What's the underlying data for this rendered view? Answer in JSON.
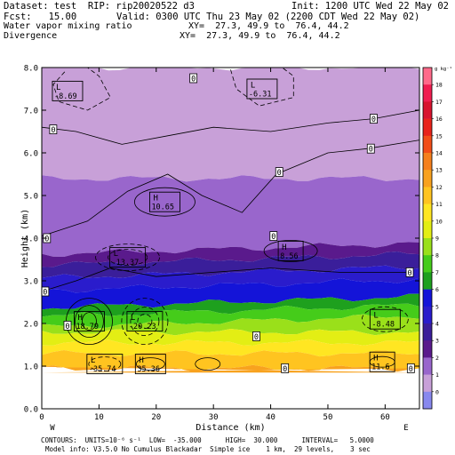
{
  "header": {
    "dataset": "Dataset: test  RIP: rip20020522 d3",
    "init": "Init: 1200 UTC Wed 22 May 02",
    "fcst": "Fcst:   15.00",
    "valid": "Valid: 0300 UTC Thu 23 May 02 (2200 CDT Wed 22 May 02)",
    "field1": "Water vapor mixing ratio",
    "xy1": "XY=  27.3, 49.9 to  76.4, 44.2",
    "field2": "Divergence",
    "xy2": "XY=  27.3, 49.9 to  76.4, 44.2"
  },
  "chart_data": {
    "type": "heatmap",
    "xlabel": "Distance (km)",
    "ylabel": "Height (km)",
    "xlim": [
      0,
      66
    ],
    "ylim": [
      0.6,
      8.0
    ],
    "x_ticks": [
      0,
      10,
      20,
      30,
      40,
      50,
      60
    ],
    "y_ticks": [
      "0.0",
      "1.0",
      "2.0",
      "3.0",
      "4.0",
      "5.0",
      "6.0",
      "7.0",
      "8.0"
    ],
    "left_end_label": "W",
    "right_end_label": "E",
    "colorbar": {
      "unit": "g kg⁻¹",
      "labels": [
        "18",
        "17",
        "16",
        "15",
        "14",
        "13",
        "12",
        "11",
        "10",
        "9",
        "8",
        "7",
        "6",
        "5",
        "4",
        "3",
        "2",
        "1",
        "0"
      ],
      "colors": [
        "#ff6a8a",
        "#f01e50",
        "#d8142e",
        "#e8231a",
        "#f24e18",
        "#f5801c",
        "#f8a21e",
        "#ffc420",
        "#ffe622",
        "#e3ee14",
        "#9ae01a",
        "#45cc1a",
        "#1ea01e",
        "#1414d8",
        "#2a1ccc",
        "#3a1e9a",
        "#5a1a8c",
        "#9966cc",
        "#c8a0d8",
        "#8888ee"
      ]
    },
    "moisture_bands": [
      {
        "g_per_kg": 12,
        "top_km": 0.95
      },
      {
        "g_per_kg": 11,
        "top_km": 1.3
      },
      {
        "g_per_kg": 10,
        "top_km": 1.55
      },
      {
        "g_per_kg": 9,
        "top_km": 1.8
      },
      {
        "g_per_kg": 8,
        "top_km": 2.05
      },
      {
        "g_per_kg": 7,
        "top_km": 2.3
      },
      {
        "g_per_kg": 6,
        "top_km": 2.5
      },
      {
        "g_per_kg": 5,
        "top_km": 2.9
      },
      {
        "g_per_kg": 4,
        "top_km": 3.2
      },
      {
        "g_per_kg": 3,
        "top_km": 3.5
      },
      {
        "g_per_kg": 2,
        "top_km": 3.75
      },
      {
        "g_per_kg": 1,
        "top_km": 5.4
      },
      {
        "g_per_kg": 0,
        "top_km": 8.0
      }
    ],
    "extrema": [
      {
        "kind": "L",
        "value": "-8.69",
        "x_km": 4.5,
        "y_km": 7.45
      },
      {
        "kind": "L",
        "value": "-6.31",
        "x_km": 38.5,
        "y_km": 7.5
      },
      {
        "kind": "H",
        "value": "10.65",
        "x_km": 21.5,
        "y_km": 4.85
      },
      {
        "kind": "L",
        "value": "-13.37",
        "x_km": 15.0,
        "y_km": 3.55
      },
      {
        "kind": "H",
        "value": "8.56",
        "x_km": 43.5,
        "y_km": 3.7
      },
      {
        "kind": "H",
        "value": "18.79",
        "x_km": 8.3,
        "y_km": 2.05
      },
      {
        "kind": "L",
        "value": "-20.23",
        "x_km": 18.0,
        "y_km": 2.05
      },
      {
        "kind": "L",
        "value": "-8.48",
        "x_km": 60.0,
        "y_km": 2.1
      },
      {
        "kind": "L",
        "value": "-35.74",
        "x_km": 11.0,
        "y_km": 1.05
      },
      {
        "kind": "H",
        "value": "35.36",
        "x_km": 19.0,
        "y_km": 1.05
      },
      {
        "kind": "H",
        "value": "11.6",
        "x_km": 59.5,
        "y_km": 1.1
      }
    ],
    "zero_labels": [
      {
        "text": "0",
        "x_km": 26.5,
        "y_km": 7.75
      },
      {
        "text": "0",
        "x_km": 2.0,
        "y_km": 6.55
      },
      {
        "text": "0",
        "x_km": 58.0,
        "y_km": 6.8
      },
      {
        "text": "0",
        "x_km": 57.5,
        "y_km": 6.1
      },
      {
        "text": "0",
        "x_km": 41.5,
        "y_km": 5.55
      },
      {
        "text": "0",
        "x_km": 0.9,
        "y_km": 4.0
      },
      {
        "text": "0",
        "x_km": 40.5,
        "y_km": 4.05
      },
      {
        "text": "0",
        "x_km": 64.3,
        "y_km": 3.2
      },
      {
        "text": "0",
        "x_km": 0.6,
        "y_km": 2.75
      },
      {
        "text": "0",
        "x_km": 4.5,
        "y_km": 1.95
      },
      {
        "text": "0",
        "x_km": 37.5,
        "y_km": 1.7
      },
      {
        "text": "0",
        "x_km": 42.5,
        "y_km": 0.95
      },
      {
        "text": "0",
        "x_km": 64.5,
        "y_km": 0.95
      }
    ]
  },
  "footer": {
    "line1": "CONTOURS:  UNITS=10⁻⁶ s⁻¹  LOW=  -35.000      HIGH=  30.000      INTERVAL=   5.0000",
    "line2": "Model info: V3.5.0 No Cumulus Blackadar  Simple ice    1 km,  29 levels,    3 sec"
  }
}
